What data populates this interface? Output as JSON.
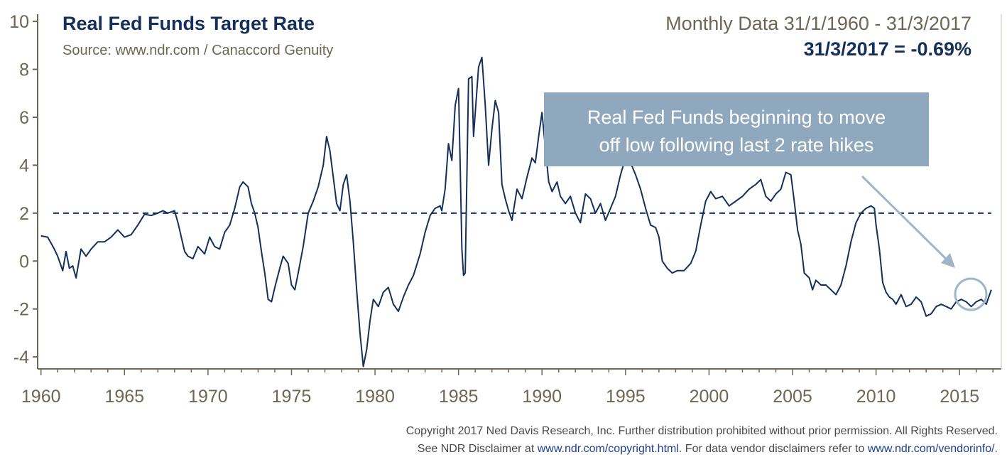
{
  "header": {
    "title": "Real Fed Funds Target Rate",
    "source": "Source: www.ndr.com / Canaccord Genuity",
    "range": "Monthly Data 31/1/1960 - 31/3/2017",
    "latest": "31/3/2017 = -0.69%"
  },
  "callout": {
    "line1": "Real Fed Funds beginning to move",
    "line2": "off low following last 2 rate hikes"
  },
  "footer": {
    "line1": "Copyright 2017 Ned Davis Research, Inc. Further distribution prohibited without prior permission. All Rights Reserved.",
    "line2_a": "See NDR Disclaimer at ",
    "line2_link1": "www.ndr.com/copyright.html",
    "line2_b": ". For data vendor disclaimers refer to ",
    "line2_link2": "www.ndr.com/vendorinfo/",
    "line2_c": "."
  },
  "colors": {
    "line": "#14305a",
    "reference": "#14305a",
    "callout_box": "#8fa8bd",
    "arrow": "#9fb6c8"
  },
  "chart_data": {
    "type": "line",
    "xlim": [
      1959.8,
      2017.5
    ],
    "ylim": [
      -4.5,
      10.3
    ],
    "x_ticks": [
      "1960",
      "1965",
      "1970",
      "1975",
      "1980",
      "1985",
      "1990",
      "1995",
      "2000",
      "2005",
      "2010",
      "2015"
    ],
    "y_ticks": [
      "-4",
      "-2",
      "0",
      "2",
      "4",
      "6",
      "8",
      "10"
    ],
    "reference_line": 2,
    "grid": false,
    "series": [
      {
        "points": [
          [
            1960.0,
            1.05
          ],
          [
            1960.4,
            1.0
          ],
          [
            1960.8,
            0.5
          ],
          [
            1961.0,
            0.2
          ],
          [
            1961.3,
            -0.4
          ],
          [
            1961.5,
            0.4
          ],
          [
            1961.7,
            -0.3
          ],
          [
            1961.9,
            -0.2
          ],
          [
            1962.1,
            -0.7
          ],
          [
            1962.4,
            0.5
          ],
          [
            1962.7,
            0.2
          ],
          [
            1963.0,
            0.5
          ],
          [
            1963.4,
            0.8
          ],
          [
            1963.8,
            0.8
          ],
          [
            1964.2,
            1.0
          ],
          [
            1964.6,
            1.3
          ],
          [
            1965.0,
            1.0
          ],
          [
            1965.4,
            1.1
          ],
          [
            1965.8,
            1.5
          ],
          [
            1966.2,
            1.95
          ],
          [
            1966.6,
            1.9
          ],
          [
            1967.0,
            2.0
          ],
          [
            1967.3,
            2.1
          ],
          [
            1967.6,
            2.0
          ],
          [
            1968.0,
            2.1
          ],
          [
            1968.2,
            1.6
          ],
          [
            1968.4,
            1.0
          ],
          [
            1968.6,
            0.4
          ],
          [
            1968.8,
            0.2
          ],
          [
            1969.1,
            0.1
          ],
          [
            1969.4,
            0.6
          ],
          [
            1969.8,
            0.3
          ],
          [
            1970.1,
            1.0
          ],
          [
            1970.4,
            0.6
          ],
          [
            1970.7,
            0.5
          ],
          [
            1971.0,
            1.2
          ],
          [
            1971.3,
            1.5
          ],
          [
            1971.6,
            2.2
          ],
          [
            1971.9,
            3.1
          ],
          [
            1972.1,
            3.3
          ],
          [
            1972.4,
            3.1
          ],
          [
            1972.6,
            2.4
          ],
          [
            1972.8,
            2.0
          ],
          [
            1973.0,
            1.4
          ],
          [
            1973.2,
            0.4
          ],
          [
            1973.4,
            -0.5
          ],
          [
            1973.6,
            -1.6
          ],
          [
            1973.8,
            -1.7
          ],
          [
            1974.0,
            -1.1
          ],
          [
            1974.3,
            -0.3
          ],
          [
            1974.5,
            0.2
          ],
          [
            1974.8,
            -0.1
          ],
          [
            1975.0,
            -1.0
          ],
          [
            1975.2,
            -1.2
          ],
          [
            1975.4,
            -0.5
          ],
          [
            1975.7,
            0.6
          ],
          [
            1976.0,
            2.0
          ],
          [
            1976.3,
            2.5
          ],
          [
            1976.6,
            3.1
          ],
          [
            1976.9,
            4.0
          ],
          [
            1977.1,
            5.2
          ],
          [
            1977.3,
            4.6
          ],
          [
            1977.5,
            3.5
          ],
          [
            1977.7,
            2.4
          ],
          [
            1977.9,
            2.1
          ],
          [
            1978.1,
            3.2
          ],
          [
            1978.3,
            3.6
          ],
          [
            1978.5,
            2.5
          ],
          [
            1978.7,
            0.8
          ],
          [
            1978.9,
            -1.2
          ],
          [
            1979.1,
            -3.0
          ],
          [
            1979.3,
            -4.4
          ],
          [
            1979.5,
            -3.7
          ],
          [
            1979.7,
            -2.5
          ],
          [
            1979.9,
            -1.6
          ],
          [
            1980.2,
            -1.9
          ],
          [
            1980.5,
            -1.3
          ],
          [
            1980.8,
            -1.1
          ],
          [
            1981.1,
            -1.8
          ],
          [
            1981.4,
            -2.1
          ],
          [
            1981.7,
            -1.5
          ],
          [
            1982.0,
            -1.0
          ],
          [
            1982.3,
            -0.6
          ],
          [
            1982.7,
            0.3
          ],
          [
            1983.0,
            1.2
          ],
          [
            1983.3,
            1.9
          ],
          [
            1983.6,
            2.2
          ],
          [
            1983.9,
            2.3
          ],
          [
            1984.0,
            2.1
          ],
          [
            1984.2,
            3.0
          ],
          [
            1984.4,
            4.9
          ],
          [
            1984.6,
            4.2
          ],
          [
            1984.8,
            6.5
          ],
          [
            1985.0,
            7.2
          ],
          [
            1985.1,
            4.0
          ],
          [
            1985.2,
            0.5
          ],
          [
            1985.3,
            -0.6
          ],
          [
            1985.4,
            -0.5
          ],
          [
            1985.6,
            7.6
          ],
          [
            1985.8,
            7.7
          ],
          [
            1985.9,
            5.2
          ],
          [
            1986.2,
            8.1
          ],
          [
            1986.4,
            8.5
          ],
          [
            1986.6,
            6.5
          ],
          [
            1986.8,
            4.0
          ],
          [
            1987.0,
            5.5
          ],
          [
            1987.2,
            6.7
          ],
          [
            1987.4,
            6.2
          ],
          [
            1987.6,
            3.2
          ],
          [
            1987.8,
            2.6
          ],
          [
            1988.0,
            2.1
          ],
          [
            1988.2,
            1.7
          ],
          [
            1988.5,
            3.0
          ],
          [
            1988.8,
            2.6
          ],
          [
            1989.1,
            3.5
          ],
          [
            1989.4,
            4.3
          ],
          [
            1989.6,
            4.1
          ],
          [
            1989.8,
            5.2
          ],
          [
            1990.0,
            6.2
          ],
          [
            1990.2,
            4.7
          ],
          [
            1990.4,
            3.3
          ],
          [
            1990.6,
            2.9
          ],
          [
            1990.9,
            3.3
          ],
          [
            1991.1,
            2.7
          ],
          [
            1991.4,
            2.4
          ],
          [
            1991.7,
            2.7
          ],
          [
            1992.0,
            2.0
          ],
          [
            1992.3,
            1.6
          ],
          [
            1992.6,
            2.8
          ],
          [
            1992.9,
            2.6
          ],
          [
            1993.2,
            2.0
          ],
          [
            1993.5,
            2.4
          ],
          [
            1993.8,
            1.7
          ],
          [
            1994.1,
            2.2
          ],
          [
            1994.4,
            2.7
          ],
          [
            1994.7,
            3.6
          ],
          [
            1995.0,
            4.3
          ],
          [
            1995.3,
            4.1
          ],
          [
            1995.6,
            3.6
          ],
          [
            1995.9,
            3.0
          ],
          [
            1996.2,
            2.2
          ],
          [
            1996.5,
            1.5
          ],
          [
            1996.8,
            1.4
          ],
          [
            1997.0,
            1.0
          ],
          [
            1997.2,
            0.0
          ],
          [
            1997.5,
            -0.3
          ],
          [
            1997.8,
            -0.5
          ],
          [
            1998.1,
            -0.4
          ],
          [
            1998.5,
            -0.4
          ],
          [
            1998.9,
            -0.1
          ],
          [
            1999.2,
            0.4
          ],
          [
            1999.5,
            1.5
          ],
          [
            1999.8,
            2.5
          ],
          [
            2000.1,
            2.9
          ],
          [
            2000.4,
            2.6
          ],
          [
            2000.8,
            2.7
          ],
          [
            2001.2,
            2.3
          ],
          [
            2001.6,
            2.5
          ],
          [
            2002.0,
            2.7
          ],
          [
            2002.4,
            3.0
          ],
          [
            2002.8,
            3.2
          ],
          [
            2003.1,
            3.4
          ],
          [
            2003.4,
            2.7
          ],
          [
            2003.7,
            2.5
          ],
          [
            2004.0,
            2.8
          ],
          [
            2004.3,
            3.0
          ],
          [
            2004.6,
            3.7
          ],
          [
            2004.9,
            3.6
          ],
          [
            2005.1,
            2.5
          ],
          [
            2005.3,
            1.3
          ],
          [
            2005.5,
            0.7
          ],
          [
            2005.7,
            -0.5
          ],
          [
            2006.0,
            -0.7
          ],
          [
            2006.2,
            -1.2
          ],
          [
            2006.4,
            -0.8
          ],
          [
            2006.7,
            -1.0
          ],
          [
            2007.0,
            -1.0
          ],
          [
            2007.3,
            -1.2
          ],
          [
            2007.6,
            -1.4
          ],
          [
            2007.9,
            -1.0
          ],
          [
            2008.2,
            -0.2
          ],
          [
            2008.5,
            0.8
          ],
          [
            2008.8,
            1.6
          ],
          [
            2009.1,
            2.0
          ],
          [
            2009.4,
            2.2
          ],
          [
            2009.7,
            2.3
          ],
          [
            2009.9,
            2.2
          ],
          [
            2010.0,
            1.5
          ],
          [
            2010.2,
            0.5
          ],
          [
            2010.4,
            -0.9
          ],
          [
            2010.6,
            -1.3
          ],
          [
            2010.8,
            -1.5
          ],
          [
            2011.0,
            -1.6
          ],
          [
            2011.2,
            -1.8
          ],
          [
            2011.5,
            -1.4
          ],
          [
            2011.8,
            -1.9
          ],
          [
            2012.1,
            -1.8
          ],
          [
            2012.4,
            -1.5
          ],
          [
            2012.7,
            -1.7
          ],
          [
            2013.0,
            -2.3
          ],
          [
            2013.3,
            -2.2
          ],
          [
            2013.6,
            -1.9
          ],
          [
            2013.9,
            -1.8
          ],
          [
            2014.2,
            -1.9
          ],
          [
            2014.5,
            -2.0
          ],
          [
            2014.8,
            -1.7
          ],
          [
            2015.1,
            -1.6
          ],
          [
            2015.4,
            -1.7
          ],
          [
            2015.7,
            -1.9
          ],
          [
            2016.0,
            -1.7
          ],
          [
            2016.3,
            -1.6
          ],
          [
            2016.6,
            -1.8
          ],
          [
            2016.9,
            -1.2
          ]
        ]
      }
    ]
  }
}
